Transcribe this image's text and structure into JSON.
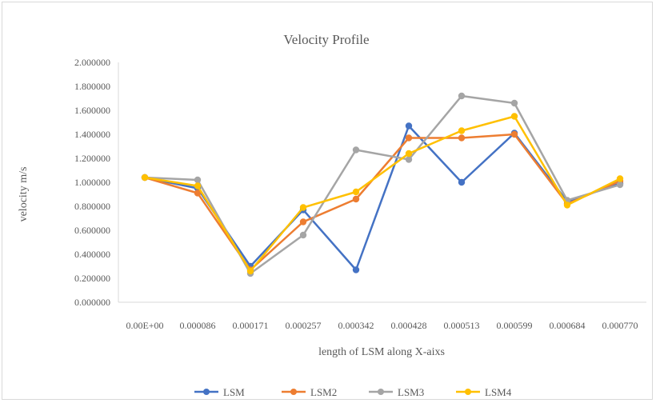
{
  "chart_data": {
    "type": "line",
    "title": "Velocity Profile",
    "xlabel": "length of LSM along X-aixs",
    "ylabel": "velocity m/s",
    "categories": [
      "0.00E+00",
      "0.000086",
      "0.000171",
      "0.000257",
      "0.000342",
      "0.000428",
      "0.000513",
      "0.000599",
      "0.000684",
      "0.000770"
    ],
    "ylim": [
      0,
      2.0
    ],
    "ytick_step": 0.2,
    "ytick_labels": [
      "0.000000",
      "0.200000",
      "0.400000",
      "0.600000",
      "0.800000",
      "1.000000",
      "1.200000",
      "1.400000",
      "1.600000",
      "1.800000",
      "2.000000"
    ],
    "grid": false,
    "legend_position": "bottom",
    "series": [
      {
        "name": "LSM",
        "color": "#4472c4",
        "values": [
          1.04,
          0.95,
          0.3,
          0.77,
          0.27,
          1.47,
          1.0,
          1.41,
          0.84,
          0.99
        ]
      },
      {
        "name": "LSM2",
        "color": "#ed7d31",
        "values": [
          1.04,
          0.91,
          0.27,
          0.67,
          0.86,
          1.37,
          1.37,
          1.4,
          0.82,
          1.01
        ]
      },
      {
        "name": "LSM3",
        "color": "#a5a5a5",
        "values": [
          1.04,
          1.02,
          0.24,
          0.56,
          1.27,
          1.19,
          1.72,
          1.66,
          0.85,
          0.98
        ]
      },
      {
        "name": "LSM4",
        "color": "#ffc000",
        "values": [
          1.04,
          0.97,
          0.26,
          0.79,
          0.92,
          1.24,
          1.43,
          1.55,
          0.81,
          1.03
        ]
      }
    ]
  }
}
